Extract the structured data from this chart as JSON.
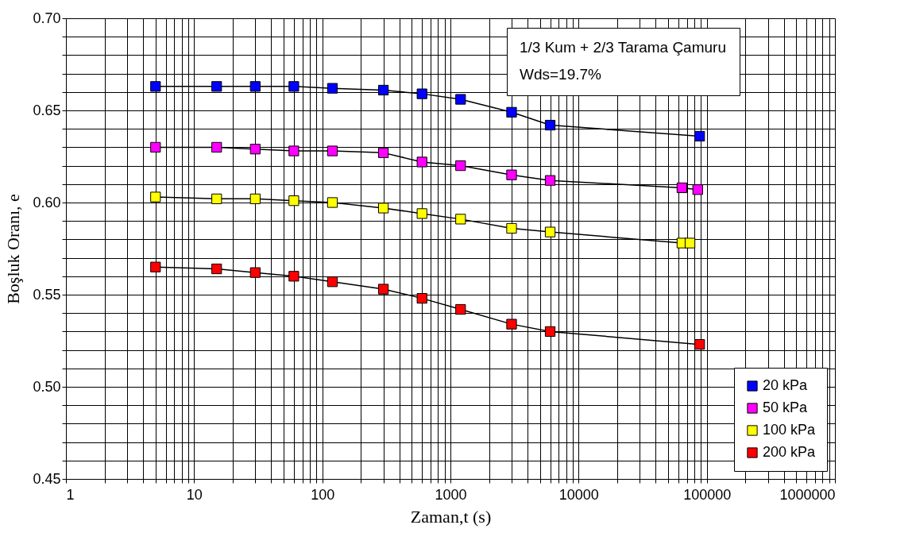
{
  "chart_data": {
    "type": "line",
    "xlabel": "Zaman,t (s)",
    "ylabel": "Boşluk Oranı, e",
    "annotations": [
      "1/3 Kum + 2/3 Tarama Çamuru",
      "Wds=19.7%"
    ],
    "log": "x",
    "grid": true,
    "legend": "bottom right",
    "marker": "square",
    "line_style": "solid",
    "xlim": [
      1,
      1000000
    ],
    "ylim": [
      0.45,
      0.7
    ],
    "xticks": [
      1,
      {
        "value": 2,
        "label": null
      },
      {
        "value": 3,
        "label": null
      },
      {
        "value": 4,
        "label": null
      },
      {
        "value": 5,
        "label": null
      },
      {
        "value": 6,
        "label": null
      },
      {
        "value": 7,
        "label": null
      },
      {
        "value": 8,
        "label": null
      },
      {
        "value": 9,
        "label": null
      },
      10,
      {
        "value": 20,
        "label": null
      },
      {
        "value": 30,
        "label": null
      },
      {
        "value": 40,
        "label": null
      },
      {
        "value": 50,
        "label": null
      },
      {
        "value": 60,
        "label": null
      },
      {
        "value": 70,
        "label": null
      },
      {
        "value": 80,
        "label": null
      },
      {
        "value": 90,
        "label": null
      },
      100,
      {
        "value": 200,
        "label": null
      },
      {
        "value": 300,
        "label": null
      },
      {
        "value": 400,
        "label": null
      },
      {
        "value": 500,
        "label": null
      },
      {
        "value": 600,
        "label": null
      },
      {
        "value": 700,
        "label": null
      },
      {
        "value": 800,
        "label": null
      },
      {
        "value": 900,
        "label": null
      },
      1000,
      {
        "value": 2000,
        "label": null
      },
      {
        "value": 3000,
        "label": null
      },
      {
        "value": 4000,
        "label": null
      },
      {
        "value": 5000,
        "label": null
      },
      {
        "value": 6000,
        "label": null
      },
      {
        "value": 7000,
        "label": null
      },
      {
        "value": 8000,
        "label": null
      },
      {
        "value": 9000,
        "label": null
      },
      10000,
      {
        "value": 20000,
        "label": null
      },
      {
        "value": 30000,
        "label": null
      },
      {
        "value": 40000,
        "label": null
      },
      {
        "value": 50000,
        "label": null
      },
      {
        "value": 60000,
        "label": null
      },
      {
        "value": 70000,
        "label": null
      },
      {
        "value": 80000,
        "label": null
      },
      {
        "value": 90000,
        "label": null
      },
      100000,
      {
        "value": 200000,
        "label": null
      },
      {
        "value": 300000,
        "label": null
      },
      {
        "value": 400000,
        "label": null
      },
      {
        "value": 500000,
        "label": null
      },
      {
        "value": 600000,
        "label": null
      },
      {
        "value": 700000,
        "label": null
      },
      {
        "value": 800000,
        "label": null
      },
      {
        "value": 900000,
        "label": null
      },
      1000000
    ],
    "yticks": [
      {
        "value": 0.45,
        "label": "0.45"
      },
      {
        "value": 0.46,
        "label": null
      },
      {
        "value": 0.47,
        "label": null
      },
      {
        "value": 0.48,
        "label": null
      },
      {
        "value": 0.49,
        "label": null
      },
      {
        "value": 0.5,
        "label": "0.50"
      },
      {
        "value": 0.51,
        "label": null
      },
      {
        "value": 0.52,
        "label": null
      },
      {
        "value": 0.53,
        "label": null
      },
      {
        "value": 0.54,
        "label": null
      },
      {
        "value": 0.55,
        "label": "0.55"
      },
      {
        "value": 0.56,
        "label": null
      },
      {
        "value": 0.57,
        "label": null
      },
      {
        "value": 0.58,
        "label": null
      },
      {
        "value": 0.59,
        "label": null
      },
      {
        "value": 0.6,
        "label": "0.60"
      },
      {
        "value": 0.61,
        "label": null
      },
      {
        "value": 0.62,
        "label": null
      },
      {
        "value": 0.63,
        "label": null
      },
      {
        "value": 0.64,
        "label": null
      },
      {
        "value": 0.65,
        "label": "0.65"
      },
      {
        "value": 0.66,
        "label": null
      },
      {
        "value": 0.67,
        "label": null
      },
      {
        "value": 0.68,
        "label": null
      },
      {
        "value": 0.69,
        "label": null
      },
      {
        "value": 0.7,
        "label": "0.70"
      }
    ],
    "series": [
      {
        "name": "20 kPa",
        "color": "#0000ff",
        "x": [
          5,
          15,
          30,
          60,
          120,
          300,
          600,
          1200,
          3000,
          6000,
          88000
        ],
        "values": [
          0.663,
          0.663,
          0.663,
          0.663,
          0.662,
          0.661,
          0.659,
          0.656,
          0.649,
          0.642,
          0.636
        ]
      },
      {
        "name": "50 kPa",
        "color": "#ff00ff",
        "x": [
          5,
          15,
          30,
          60,
          120,
          300,
          600,
          1200,
          3000,
          6000,
          64000,
          85000
        ],
        "values": [
          0.63,
          0.63,
          0.629,
          0.628,
          0.628,
          0.627,
          0.622,
          0.62,
          0.615,
          0.612,
          0.608,
          0.607
        ]
      },
      {
        "name": "100 kPa",
        "color": "#ffff00",
        "x": [
          5,
          15,
          30,
          60,
          120,
          300,
          600,
          1200,
          3000,
          6000,
          64000,
          74000
        ],
        "values": [
          0.603,
          0.602,
          0.602,
          0.601,
          0.6,
          0.597,
          0.594,
          0.591,
          0.586,
          0.584,
          0.578,
          0.578
        ]
      },
      {
        "name": "200 kPa",
        "color": "#ff0000",
        "x": [
          5,
          15,
          30,
          60,
          120,
          300,
          600,
          1200,
          3000,
          6000,
          88000
        ],
        "values": [
          0.565,
          0.564,
          0.562,
          0.56,
          0.557,
          0.553,
          0.548,
          0.542,
          0.534,
          0.53,
          0.523
        ]
      }
    ]
  }
}
